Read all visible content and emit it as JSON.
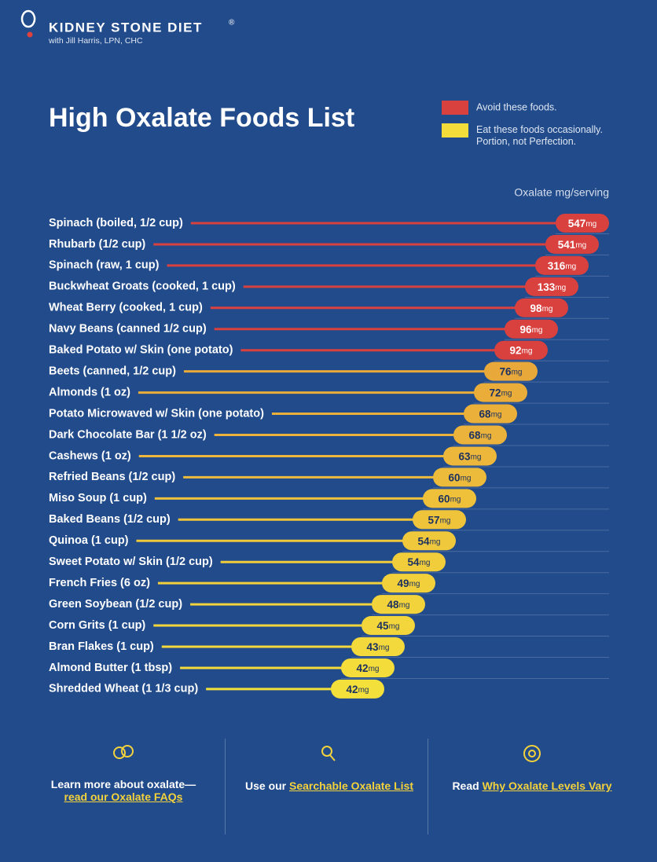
{
  "header": {
    "brand": "KIDNEY STONE DIET",
    "registered": "®",
    "byline": "with Jill Harris, LPN, CHC"
  },
  "chart_data": {
    "type": "bar",
    "title": "High Oxalate Foods List",
    "axis_label": "Oxalate mg/serving",
    "unit": "mg",
    "series": [
      {
        "name": "Avoid these foods.",
        "color": "#d9413f"
      },
      {
        "name": "Eat these foods occasionally. Portion, not Perfection.",
        "color": "#f4dc3b"
      }
    ],
    "categories": [
      "Spinach (boiled, 1/2 cup)",
      "Rhubarb (1/2 cup)",
      "Spinach (raw, 1 cup)",
      "Buckwheat Groats (cooked, 1 cup)",
      "Wheat Berry (cooked, 1 cup)",
      "Navy Beans (canned 1/2 cup)",
      "Baked Potato w/ Skin (one potato)",
      "Beets (canned, 1/2 cup)",
      "Almonds (1 oz)",
      "Potato Microwaved w/ Skin (one potato)",
      "Dark Chocolate Bar (1 1/2 oz)",
      "Cashews (1 oz)",
      "Refried Beans (1/2 cup)",
      "Miso Soup (1 cup)",
      "Baked Beans (1/2 cup)",
      "Quinoa (1 cup)",
      "Sweet Potato w/ Skin (1/2 cup)",
      "French Fries (6 oz)",
      "Green Soybean (1/2 cup)",
      "Corn Grits (1 cup)",
      "Bran Flakes (1 cup)",
      "Almond Butter (1 tbsp)",
      "Shredded Wheat (1 1/3 cup)"
    ],
    "values": [
      547,
      541,
      316,
      133,
      98,
      96,
      92,
      76,
      72,
      68,
      68,
      63,
      60,
      60,
      57,
      54,
      54,
      49,
      48,
      45,
      43,
      42,
      42
    ],
    "colors": [
      "#d9413f",
      "#d9413f",
      "#d9413f",
      "#d9413f",
      "#d9413f",
      "#d9413f",
      "#d9413f",
      "#e9a83a",
      "#eaad3a",
      "#ebb03a",
      "#ebb33b",
      "#ecb73b",
      "#edbb3b",
      "#efc13b",
      "#efc43b",
      "#f0c83b",
      "#f1cd3b",
      "#f2d03b",
      "#f2d33b",
      "#f3d63b",
      "#f3d93b",
      "#f4dc3b",
      "#f4e03b"
    ]
  },
  "footer": {
    "faq_text": "Learn more about oxalate—",
    "faq_link": "read our Oxalate FAQs",
    "list_text": "Use our",
    "list_link": "Searchable Oxalate List",
    "vary_text": "Read",
    "vary_link": "Why Oxalate Levels Vary"
  }
}
